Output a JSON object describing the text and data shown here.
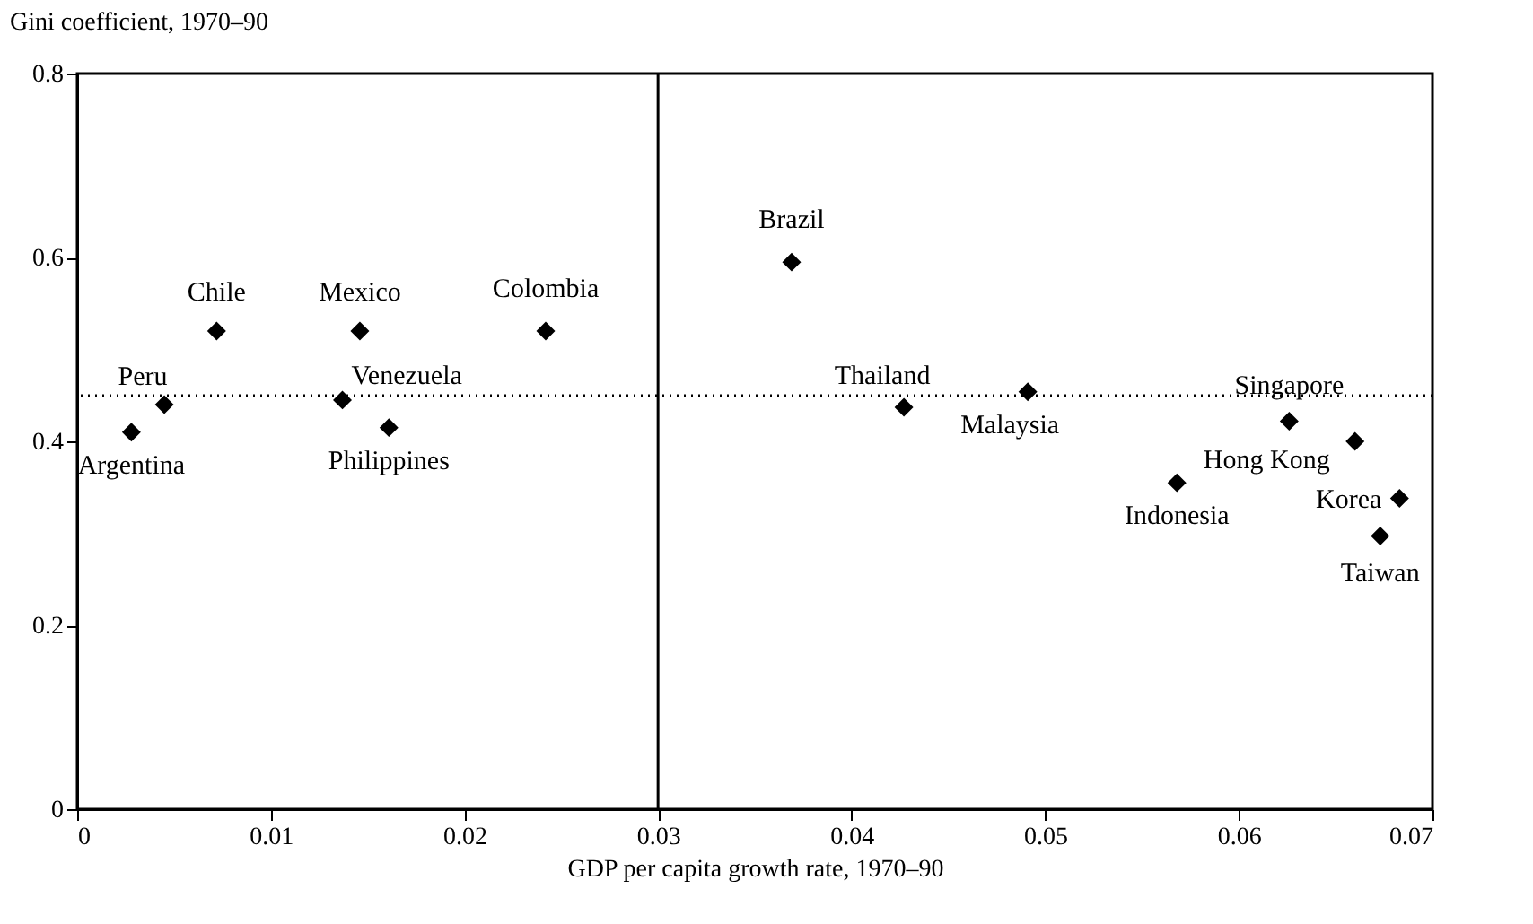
{
  "chart_data": {
    "type": "scatter",
    "ylabel": "Gini coefficient, 1970–90",
    "xlabel": "GDP per capita growth rate, 1970–90",
    "x": [
      0.0028,
      0.0045,
      0.0072,
      0.0146,
      0.0242,
      0.0137,
      0.0161,
      0.0369,
      0.0427,
      0.0491,
      0.0626,
      0.066,
      0.0568,
      0.0683,
      0.0673
    ],
    "series": [
      {
        "color": "#000000",
        "values": [
          0.41,
          0.44,
          0.52,
          0.52,
          0.52,
          0.445,
          0.415,
          0.595,
          0.437,
          0.454,
          0.422,
          0.4,
          0.355,
          0.338,
          0.297
        ]
      }
    ],
    "marker": "diamond",
    "grid": false,
    "xlim": [
      0,
      0.07
    ],
    "xticks": [
      0,
      0.01,
      0.02,
      0.03,
      0.04,
      0.05,
      0.06,
      0.07
    ],
    "ylim": [
      0,
      0.8
    ],
    "yticks": [
      0,
      0.2,
      0.4,
      0.6,
      0.8
    ],
    "ref_lines": [
      {
        "axis": "x",
        "value": 0.03,
        "line_style": "solid",
        "color": "#000000"
      },
      {
        "axis": "y",
        "value": 0.45,
        "line_style": "dotted",
        "color": "#000000"
      }
    ],
    "annotations": [
      {
        "text": "Argentina",
        "x": 0.0028,
        "y": 0.41
      },
      {
        "text": "Peru",
        "x": 0.0045,
        "y": 0.44
      },
      {
        "text": "Chile",
        "x": 0.0072,
        "y": 0.52
      },
      {
        "text": "Mexico",
        "x": 0.0146,
        "y": 0.52
      },
      {
        "text": "Colombia",
        "x": 0.0242,
        "y": 0.52
      },
      {
        "text": "Venezuela",
        "x": 0.0137,
        "y": 0.445
      },
      {
        "text": "Philippines",
        "x": 0.0161,
        "y": 0.415
      },
      {
        "text": "Brazil",
        "x": 0.0369,
        "y": 0.595
      },
      {
        "text": "Thailand",
        "x": 0.0427,
        "y": 0.437
      },
      {
        "text": "Malaysia",
        "x": 0.0491,
        "y": 0.454
      },
      {
        "text": "Singapore",
        "x": 0.0626,
        "y": 0.422
      },
      {
        "text": "Hong Kong",
        "x": 0.066,
        "y": 0.4
      },
      {
        "text": "Indonesia",
        "x": 0.0568,
        "y": 0.355
      },
      {
        "text": "Korea",
        "x": 0.0683,
        "y": 0.338
      },
      {
        "text": "Taiwan",
        "x": 0.0673,
        "y": 0.297
      }
    ]
  }
}
